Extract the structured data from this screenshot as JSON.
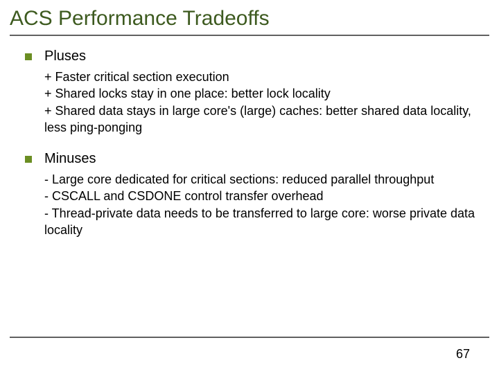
{
  "title": "ACS Performance Tradeoffs",
  "colors": {
    "title_color": "#3d5a1f",
    "bullet_color": "#6b8e23",
    "underline_color": "#606060",
    "text_color": "#000000",
    "background": "#ffffff"
  },
  "typography": {
    "title_fontsize": 30,
    "section_title_fontsize": 20,
    "body_fontsize": 18,
    "page_number_fontsize": 18,
    "title_font": "Arial",
    "body_font": "Verdana"
  },
  "sections": [
    {
      "title": "Pluses",
      "lines": [
        "+ Faster critical section execution",
        "+ Shared locks stay in one place: better lock locality",
        "+ Shared data stays in large core's (large) caches: better shared data locality, less ping-ponging"
      ]
    },
    {
      "title": "Minuses",
      "lines": [
        "- Large core dedicated for critical sections: reduced parallel throughput",
        "- CSCALL and CSDONE control transfer overhead",
        "- Thread-private data needs to be transferred to large core: worse private data locality"
      ]
    }
  ],
  "page_number": "67"
}
